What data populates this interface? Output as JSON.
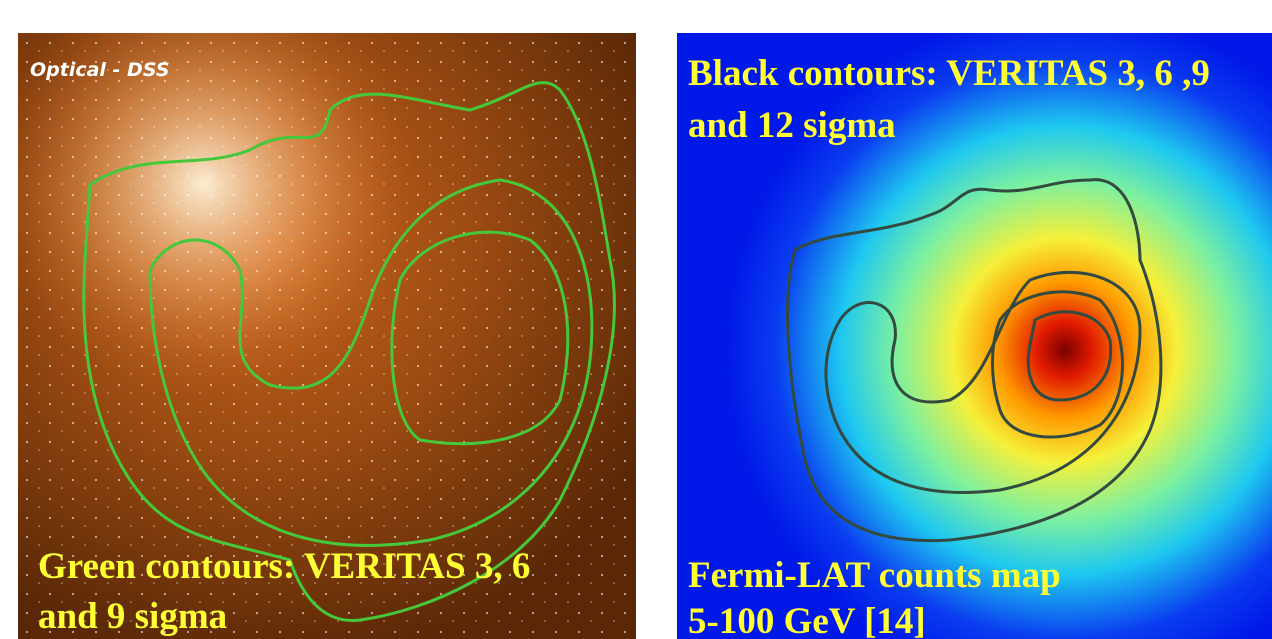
{
  "left_panel": {
    "label": "Optical - DSS",
    "caption": [
      "Green contours: VERITAS 3, 6",
      "and 9 sigma"
    ]
  },
  "right_panel": {
    "caption_top": [
      "Black contours: VERITAS 3, 6 ,9",
      "and 12 sigma"
    ],
    "caption_bottom": [
      "Fermi-LAT counts map",
      "5-100 GeV [14]"
    ]
  }
}
